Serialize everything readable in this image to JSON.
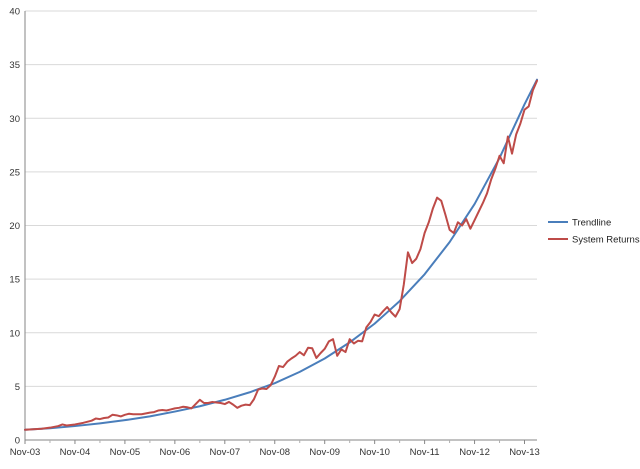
{
  "chart_data": {
    "type": "line",
    "title": "",
    "xlabel": "",
    "ylabel": "",
    "x_ticks": [
      "Nov-03",
      "Nov-04",
      "Nov-05",
      "Nov-06",
      "Nov-07",
      "Nov-08",
      "Nov-09",
      "Nov-10",
      "Nov-11",
      "Nov-12",
      "Nov-13"
    ],
    "x_range": [
      0,
      123
    ],
    "y_ticks": [
      "0",
      "5",
      "10",
      "15",
      "20",
      "25",
      "30",
      "35",
      "40"
    ],
    "ylim": [
      0,
      40
    ],
    "grid": "horizontal",
    "legend_position": "right",
    "series": [
      {
        "name": "Trendline",
        "color": "#4a7ebb",
        "x": [
          0,
          6,
          12,
          18,
          24,
          30,
          36,
          42,
          48,
          54,
          60,
          66,
          72,
          78,
          84,
          90,
          96,
          102,
          108,
          114,
          120,
          123
        ],
        "y": [
          0.95,
          1.1,
          1.3,
          1.55,
          1.85,
          2.2,
          2.65,
          3.15,
          3.75,
          4.45,
          5.3,
          6.35,
          7.6,
          9.1,
          10.85,
          12.95,
          15.45,
          18.45,
          22.0,
          26.3,
          31.3,
          33.6
        ]
      },
      {
        "name": "System Returns",
        "color": "#be4b48",
        "x": [
          0,
          2,
          4,
          6,
          8,
          9,
          10,
          12,
          14,
          16,
          17,
          18,
          19,
          20,
          21,
          22,
          23,
          24,
          25,
          26,
          28,
          30,
          31,
          32,
          33,
          34,
          35,
          36,
          37,
          38,
          39,
          40,
          41,
          42,
          43,
          44,
          45,
          46,
          47,
          48,
          49,
          50,
          51,
          52,
          53,
          54,
          55,
          56,
          57,
          58,
          59,
          60,
          61,
          62,
          63,
          64,
          65,
          66,
          67,
          68,
          69,
          70,
          71,
          72,
          73,
          74,
          75,
          76,
          77,
          78,
          79,
          80,
          81,
          82,
          83,
          84,
          85,
          86,
          87,
          88,
          89,
          90,
          91,
          92,
          93,
          94,
          95,
          96,
          97,
          98,
          99,
          100,
          101,
          102,
          103,
          104,
          105,
          106,
          107,
          108,
          109,
          110,
          111,
          112,
          113,
          114,
          115,
          116,
          117,
          118,
          119,
          120,
          121,
          122,
          123
        ],
        "y": [
          0.95,
          1.0,
          1.05,
          1.15,
          1.3,
          1.45,
          1.35,
          1.45,
          1.6,
          1.8,
          2.0,
          1.95,
          2.05,
          2.1,
          2.35,
          2.3,
          2.2,
          2.35,
          2.45,
          2.4,
          2.4,
          2.55,
          2.6,
          2.75,
          2.8,
          2.75,
          2.85,
          2.95,
          3.0,
          3.1,
          3.05,
          2.95,
          3.35,
          3.75,
          3.45,
          3.45,
          3.55,
          3.5,
          3.45,
          3.35,
          3.55,
          3.3,
          3.0,
          3.2,
          3.3,
          3.25,
          3.8,
          4.7,
          4.8,
          4.75,
          5.1,
          5.9,
          6.9,
          6.8,
          7.3,
          7.6,
          7.85,
          8.2,
          7.9,
          8.6,
          8.55,
          7.65,
          8.1,
          8.5,
          9.2,
          9.4,
          7.85,
          8.45,
          8.2,
          9.4,
          9.0,
          9.25,
          9.2,
          10.5,
          11.0,
          11.7,
          11.55,
          12.0,
          12.4,
          11.9,
          11.5,
          12.2,
          14.5,
          17.5,
          16.5,
          16.9,
          17.8,
          19.3,
          20.3,
          21.6,
          22.6,
          22.3,
          21.0,
          19.6,
          19.3,
          20.3,
          20.0,
          20.6,
          19.7,
          20.5,
          21.3,
          22.1,
          23.0,
          24.3,
          25.3,
          26.5,
          25.8,
          28.3,
          26.7,
          28.5,
          29.5,
          30.8,
          31.1,
          32.6,
          33.5
        ]
      }
    ]
  }
}
